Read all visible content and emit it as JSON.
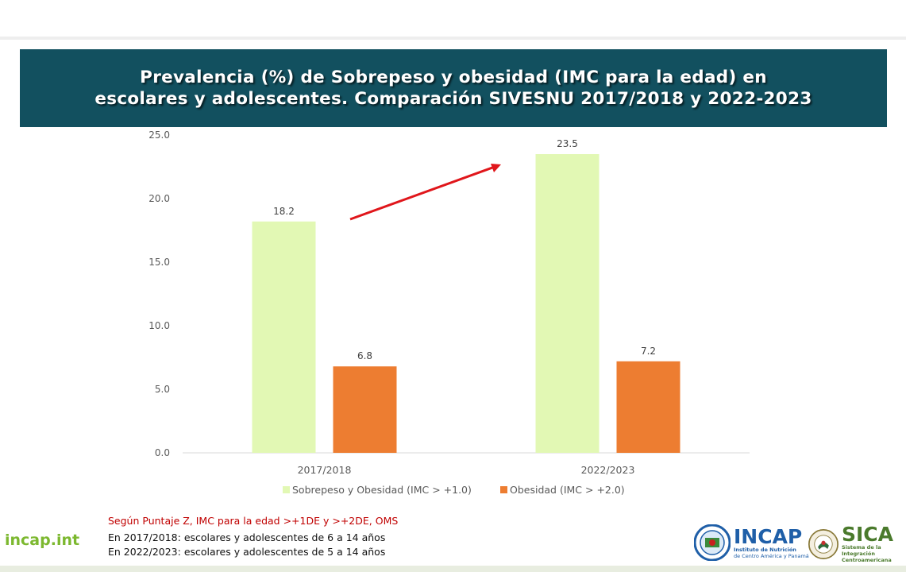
{
  "title": "Prevalencia (%) de  Sobrepeso y obesidad (IMC para la edad) en\nescolares y adolescentes. Comparación SIVESNU 2017/2018 y 2022-2023",
  "chart_data": {
    "type": "bar",
    "categories": [
      "2017/2018",
      "2022/2023"
    ],
    "series": [
      {
        "name": "Sobrepeso y Obesidad (IMC > +1.0)",
        "values": [
          18.2,
          23.5
        ],
        "color": "#e2f8b4"
      },
      {
        "name": "Obesidad (IMC > +2.0)",
        "values": [
          6.8,
          7.2
        ],
        "color": "#ed7d31"
      }
    ],
    "data_labels": [
      [
        "18.2",
        "23.5"
      ],
      [
        "6.8",
        "7.2"
      ]
    ],
    "ylim": [
      0,
      25
    ],
    "yticks": [
      "0.0",
      "5.0",
      "10.0",
      "15.0",
      "20.0",
      "25.0"
    ],
    "grid": false,
    "legend": "bottom",
    "annotation": "red upward arrow from 2017/2018 to 2022/2023"
  },
  "notes": {
    "criteria": "Según Puntaje Z, IMC para la edad >+1DE y >+2DE, OMS",
    "line1": "En 2017/2018: escolares y adolescentes de 6 a 14 años",
    "line2": "En 2022/2023: escolares y adolescentes de 5 a 14 años"
  },
  "footer": {
    "website": "incap.int",
    "incap_name": "INCAP",
    "incap_sub1": "Instituto de Nutrición",
    "incap_sub2": "de Centro América y Panamá",
    "sica_name": "SICA",
    "sica_sub1": "Sistema de la Integración",
    "sica_sub2": "Centroamericana"
  },
  "colors": {
    "banner": "#12505f",
    "incap_blue": "#1f5fa8",
    "sica_green": "#4a7a2c",
    "site_green": "#7cb82f",
    "arrow": "#e0161b"
  }
}
